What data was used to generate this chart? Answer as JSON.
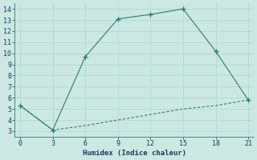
{
  "line1_x": [
    0,
    3,
    6,
    9,
    12,
    15,
    18,
    21
  ],
  "line1_y": [
    5.3,
    3.1,
    9.7,
    13.1,
    13.5,
    14.0,
    10.2,
    5.8
  ],
  "line2_x": [
    0,
    3,
    6,
    9,
    12,
    15,
    18,
    21
  ],
  "line2_y": [
    5.3,
    3.1,
    3.5,
    4.0,
    4.5,
    5.0,
    5.3,
    5.8
  ],
  "line_color": "#2a7d6e",
  "bg_color": "#cce8e3",
  "grid_color": "#b0d8d2",
  "xlabel": "Humidex (Indice chaleur)",
  "xlim": [
    -0.5,
    21.5
  ],
  "ylim": [
    2.5,
    14.5
  ],
  "xticks": [
    0,
    3,
    6,
    9,
    12,
    15,
    18,
    21
  ],
  "yticks": [
    3,
    4,
    5,
    6,
    7,
    8,
    9,
    10,
    11,
    12,
    13,
    14
  ]
}
